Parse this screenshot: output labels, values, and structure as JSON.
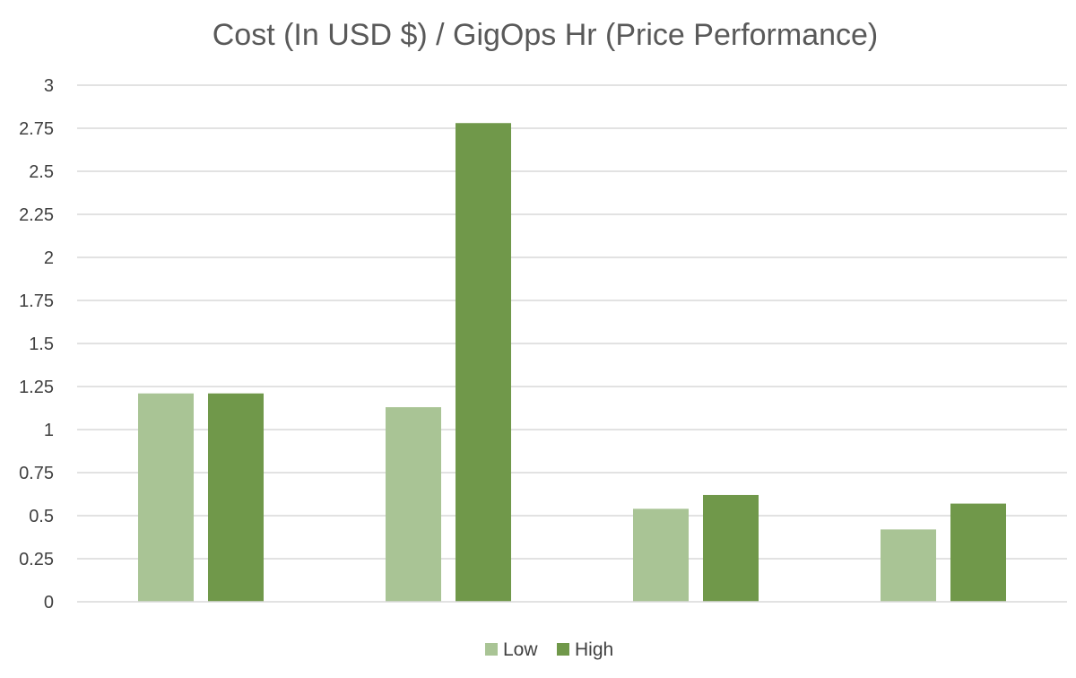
{
  "chart_data": {
    "type": "bar",
    "title": "Cost (In USD $) / GigOps Hr (Price Performance)",
    "xlabel": "",
    "ylabel": "",
    "ylim": [
      0,
      3
    ],
    "y_ticks": [
      "0",
      "0.25",
      "0.5",
      "0.75",
      "1",
      "1.25",
      "1.5",
      "1.75",
      "2",
      "2.25",
      "2.5",
      "2.75",
      "3"
    ],
    "categories": [
      "",
      "",
      "",
      ""
    ],
    "series": [
      {
        "name": "Low",
        "color": "#a9c495",
        "values": [
          1.21,
          1.13,
          0.54,
          0.42
        ]
      },
      {
        "name": "High",
        "color": "#70984a",
        "values": [
          1.21,
          2.78,
          0.62,
          0.57
        ]
      }
    ],
    "grid": true,
    "legend": "bottom"
  }
}
